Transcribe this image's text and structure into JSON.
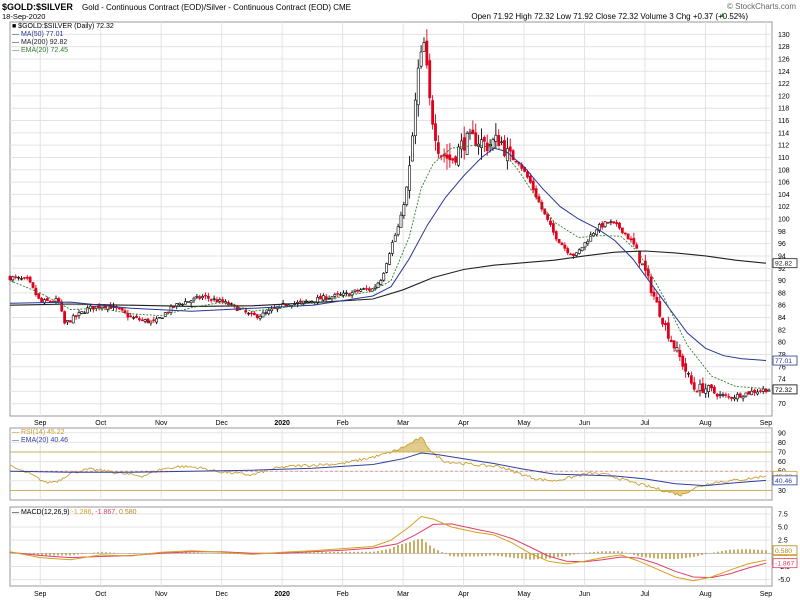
{
  "header": {
    "symbol": "$GOLD:$SILVER",
    "description": "Gold - Continuous Contract (EOD)/Silver - Continuous Contract (EOD)  CME",
    "date": "18-Sep-2020",
    "quote": "Open 71.92  High 72.32  Low 71.92  Close 72.32  Volume 3  Chg +0.37 (+0.52%)",
    "quote_arrow": "▲",
    "watermark": "© StockCharts.com"
  },
  "colors": {
    "up": "#000000",
    "down": "#e0001b",
    "ma50": "#283593",
    "ma200": "#222222",
    "ema20": "#2e7d32",
    "rsi": "#c8a030",
    "rsi_fill": "#c8a030",
    "rsi_ema": "#3040a0",
    "macd": "#d4a020",
    "signal": "#e0406a",
    "hist": "#b08820",
    "grid": "#e3e3e3",
    "frame": "#9a9a9a"
  },
  "price_panel": {
    "legend": [
      {
        "text": "$GOLD:$SILVER (Daily) 72.32",
        "color": "#000000"
      },
      {
        "text": "MA(50) 77.01",
        "color": "#283593"
      },
      {
        "text": "MA(200) 92.82",
        "color": "#222222"
      },
      {
        "text": "EMA(20) 72.45",
        "color": "#2e7d32"
      }
    ],
    "y_ticks": [
      "70",
      "72",
      "74",
      "76",
      "78",
      "80",
      "82",
      "84",
      "86",
      "88",
      "90",
      "92",
      "94",
      "96",
      "98",
      "100",
      "102",
      "104",
      "106",
      "108",
      "110",
      "112",
      "114",
      "116",
      "118",
      "120",
      "122",
      "124",
      "126",
      "128",
      "130"
    ],
    "value_tags": [
      {
        "text": "92.82",
        "value": 92.82,
        "color": "#222222"
      },
      {
        "text": "77.01",
        "value": 77.01,
        "color": "#283593"
      },
      {
        "text": "72.32",
        "value": 72.32,
        "color": "#000000"
      }
    ]
  },
  "rsi_panel": {
    "legend": [
      {
        "text": "RSI(14) 45.22",
        "color": "#c8a030"
      },
      {
        "text": "EMA(20) 40.46",
        "color": "#3040a0"
      }
    ],
    "y_ticks": [
      "30",
      "40",
      "50",
      "60",
      "70",
      "80",
      "90"
    ],
    "value_tags": [
      {
        "text": "45.22",
        "value": 45.22,
        "color": "#c8a030"
      },
      {
        "text": "40.46",
        "value": 40.46,
        "color": "#3040a0"
      }
    ]
  },
  "macd_panel": {
    "legend_label": "MACD(12,26,9)",
    "legend_values": [
      "-1.286",
      ", -1.867",
      ", 0.580"
    ],
    "y_ticks": [
      "-5.0",
      "-2.5",
      "0.0",
      "2.5",
      "5.0",
      "7.5"
    ],
    "value_tags": [
      {
        "text": "0.580",
        "value": 0.58,
        "color": "#b08820"
      },
      {
        "text": "-1.286",
        "value": -1.286,
        "color": "#d4a020"
      },
      {
        "text": "-1.867",
        "value": -1.867,
        "color": "#e0406a"
      }
    ]
  },
  "x_axis": {
    "labels": [
      "Sep",
      "Oct",
      "Nov",
      "Dec",
      "2020",
      "Feb",
      "Mar",
      "Apr",
      "May",
      "Jun",
      "Jul",
      "Aug",
      "Sep"
    ],
    "positions": [
      0.5,
      1.5,
      2.5,
      3.5,
      4.5,
      5.5,
      6.5,
      7.5,
      8.5,
      9.5,
      10.5,
      11.5,
      12.5
    ]
  },
  "chart_data": {
    "type": "candlestick",
    "title": "$GOLD:$SILVER (Daily)",
    "x_unit": "months since Aug 2019",
    "x_range": [
      0,
      12.6
    ],
    "ylim": [
      68,
      132
    ],
    "price_points": [
      [
        0.0,
        90.5
      ],
      [
        0.3,
        90.0
      ],
      [
        0.5,
        86.5
      ],
      [
        0.8,
        86.8
      ],
      [
        0.9,
        83.0
      ],
      [
        1.1,
        84.2
      ],
      [
        1.3,
        85.5
      ],
      [
        1.6,
        86.0
      ],
      [
        1.8,
        85.2
      ],
      [
        2.0,
        84.0
      ],
      [
        2.2,
        83.5
      ],
      [
        2.4,
        83.2
      ],
      [
        2.6,
        85.0
      ],
      [
        2.8,
        86.3
      ],
      [
        3.0,
        86.8
      ],
      [
        3.2,
        87.4
      ],
      [
        3.4,
        86.8
      ],
      [
        3.6,
        86.2
      ],
      [
        3.8,
        85.3
      ],
      [
        4.0,
        84.2
      ],
      [
        4.2,
        84.5
      ],
      [
        4.4,
        85.5
      ],
      [
        4.6,
        86.3
      ],
      [
        4.8,
        86.3
      ],
      [
        5.0,
        86.8
      ],
      [
        5.2,
        87.2
      ],
      [
        5.4,
        87.5
      ],
      [
        5.6,
        87.8
      ],
      [
        5.8,
        88.5
      ],
      [
        6.0,
        88.6
      ],
      [
        6.15,
        90.5
      ],
      [
        6.3,
        95.5
      ],
      [
        6.45,
        99.5
      ],
      [
        6.6,
        107.0
      ],
      [
        6.75,
        124.0
      ],
      [
        6.85,
        128.5
      ],
      [
        6.95,
        118.0
      ],
      [
        7.1,
        111.0
      ],
      [
        7.3,
        109.5
      ],
      [
        7.5,
        112.5
      ],
      [
        7.7,
        113.0
      ],
      [
        7.9,
        112.0
      ],
      [
        8.1,
        113.0
      ],
      [
        8.25,
        110.0
      ],
      [
        8.4,
        109.5
      ],
      [
        8.6,
        106.0
      ],
      [
        8.8,
        101.5
      ],
      [
        9.0,
        97.5
      ],
      [
        9.2,
        95.0
      ],
      [
        9.35,
        94.0
      ],
      [
        9.5,
        96.0
      ],
      [
        9.7,
        98.5
      ],
      [
        9.9,
        99.5
      ],
      [
        10.1,
        98.5
      ],
      [
        10.3,
        96.0
      ],
      [
        10.5,
        91.5
      ],
      [
        10.7,
        86.0
      ],
      [
        10.9,
        81.0
      ],
      [
        11.1,
        77.0
      ],
      [
        11.3,
        72.5
      ],
      [
        11.5,
        72.5
      ],
      [
        11.7,
        71.5
      ],
      [
        11.9,
        71.0
      ],
      [
        12.1,
        71.5
      ],
      [
        12.3,
        72.0
      ],
      [
        12.5,
        72.32
      ]
    ],
    "last_candle": {
      "open": 71.92,
      "high": 72.32,
      "low": 71.92,
      "close": 72.32,
      "volume": 3,
      "change": 0.37,
      "change_pct": 0.52
    },
    "series": [
      {
        "name": "MA(50)",
        "points": [
          [
            0.0,
            86.3
          ],
          [
            1.0,
            86.5
          ],
          [
            2.0,
            85.5
          ],
          [
            3.0,
            85.0
          ],
          [
            4.0,
            85.5
          ],
          [
            5.0,
            86.0
          ],
          [
            6.0,
            87.5
          ],
          [
            6.3,
            89.0
          ],
          [
            6.6,
            93.5
          ],
          [
            6.9,
            99.0
          ],
          [
            7.2,
            103.5
          ],
          [
            7.5,
            107.0
          ],
          [
            7.8,
            110.0
          ],
          [
            8.0,
            111.5
          ],
          [
            8.2,
            111.0
          ],
          [
            8.5,
            108.5
          ],
          [
            8.8,
            105.0
          ],
          [
            9.1,
            102.0
          ],
          [
            9.4,
            100.0
          ],
          [
            9.7,
            98.5
          ],
          [
            10.0,
            96.5
          ],
          [
            10.3,
            93.5
          ],
          [
            10.6,
            89.5
          ],
          [
            10.9,
            85.5
          ],
          [
            11.2,
            81.5
          ],
          [
            11.5,
            79.0
          ],
          [
            11.8,
            77.8
          ],
          [
            12.1,
            77.3
          ],
          [
            12.5,
            77.01
          ]
        ]
      },
      {
        "name": "MA(200)",
        "points": [
          [
            0.0,
            86.0
          ],
          [
            1.0,
            86.2
          ],
          [
            2.0,
            86.0
          ],
          [
            3.0,
            85.8
          ],
          [
            4.0,
            85.9
          ],
          [
            5.0,
            86.4
          ],
          [
            6.0,
            87.0
          ],
          [
            6.5,
            88.5
          ],
          [
            7.0,
            90.5
          ],
          [
            7.5,
            91.8
          ],
          [
            8.0,
            92.5
          ],
          [
            8.5,
            92.9
          ],
          [
            9.0,
            93.3
          ],
          [
            9.5,
            94.0
          ],
          [
            10.0,
            94.6
          ],
          [
            10.5,
            94.8
          ],
          [
            11.0,
            94.5
          ],
          [
            11.5,
            94.0
          ],
          [
            12.0,
            93.3
          ],
          [
            12.5,
            92.82
          ]
        ]
      },
      {
        "name": "EMA(20)",
        "points": [
          [
            0.0,
            90.0
          ],
          [
            0.5,
            88.0
          ],
          [
            1.0,
            85.3
          ],
          [
            1.5,
            85.5
          ],
          [
            2.0,
            84.6
          ],
          [
            2.5,
            84.3
          ],
          [
            3.0,
            85.6
          ],
          [
            3.5,
            86.5
          ],
          [
            4.0,
            85.0
          ],
          [
            4.5,
            85.6
          ],
          [
            5.0,
            86.4
          ],
          [
            5.5,
            87.4
          ],
          [
            6.0,
            88.3
          ],
          [
            6.3,
            90.0
          ],
          [
            6.6,
            97.0
          ],
          [
            6.8,
            105.0
          ],
          [
            7.0,
            109.0
          ],
          [
            7.3,
            111.5
          ],
          [
            7.7,
            112.0
          ],
          [
            8.1,
            111.5
          ],
          [
            8.4,
            108.0
          ],
          [
            8.7,
            103.5
          ],
          [
            9.0,
            99.5
          ],
          [
            9.4,
            97.0
          ],
          [
            9.8,
            97.3
          ],
          [
            10.1,
            97.2
          ],
          [
            10.4,
            94.5
          ],
          [
            10.8,
            87.5
          ],
          [
            11.2,
            79.5
          ],
          [
            11.6,
            74.5
          ],
          [
            12.0,
            72.8
          ],
          [
            12.5,
            72.45
          ]
        ]
      }
    ],
    "rsi": {
      "ylim": [
        20,
        95
      ],
      "overbought": 70,
      "oversold": 30,
      "rsi_points": [
        [
          0.0,
          55
        ],
        [
          0.3,
          48
        ],
        [
          0.6,
          38
        ],
        [
          0.8,
          40
        ],
        [
          1.0,
          48
        ],
        [
          1.3,
          52
        ],
        [
          1.6,
          50
        ],
        [
          1.9,
          47
        ],
        [
          2.2,
          45
        ],
        [
          2.5,
          52
        ],
        [
          2.8,
          55
        ],
        [
          3.1,
          54
        ],
        [
          3.4,
          50
        ],
        [
          3.7,
          48
        ],
        [
          4.0,
          46
        ],
        [
          4.3,
          52
        ],
        [
          4.6,
          55
        ],
        [
          4.9,
          56
        ],
        [
          5.2,
          57
        ],
        [
          5.5,
          58
        ],
        [
          5.8,
          62
        ],
        [
          6.1,
          66
        ],
        [
          6.4,
          72
        ],
        [
          6.6,
          78
        ],
        [
          6.8,
          85
        ],
        [
          7.0,
          68
        ],
        [
          7.2,
          60
        ],
        [
          7.5,
          58
        ],
        [
          7.8,
          56
        ],
        [
          8.1,
          55
        ],
        [
          8.4,
          48
        ],
        [
          8.7,
          42
        ],
        [
          9.0,
          40
        ],
        [
          9.3,
          44
        ],
        [
          9.6,
          48
        ],
        [
          9.9,
          46
        ],
        [
          10.2,
          40
        ],
        [
          10.5,
          35
        ],
        [
          10.8,
          30
        ],
        [
          11.1,
          25
        ],
        [
          11.3,
          32
        ],
        [
          11.6,
          38
        ],
        [
          11.9,
          40
        ],
        [
          12.2,
          42
        ],
        [
          12.5,
          45.22
        ]
      ],
      "ema_points": [
        [
          0.0,
          50
        ],
        [
          1.0,
          49
        ],
        [
          2.0,
          49
        ],
        [
          3.0,
          50
        ],
        [
          4.0,
          51
        ],
        [
          5.0,
          53
        ],
        [
          6.0,
          57
        ],
        [
          6.5,
          63
        ],
        [
          6.8,
          69
        ],
        [
          7.1,
          67
        ],
        [
          7.5,
          63
        ],
        [
          8.0,
          58
        ],
        [
          8.5,
          52
        ],
        [
          9.0,
          47
        ],
        [
          9.5,
          46
        ],
        [
          10.0,
          45
        ],
        [
          10.5,
          42
        ],
        [
          11.0,
          37
        ],
        [
          11.5,
          35
        ],
        [
          12.0,
          38
        ],
        [
          12.5,
          40.46
        ]
      ]
    },
    "macd": {
      "ylim": [
        -6.2,
        8.8
      ],
      "macd_points": [
        [
          0.0,
          0.3
        ],
        [
          0.5,
          -0.8
        ],
        [
          1.0,
          -1.2
        ],
        [
          1.5,
          -0.3
        ],
        [
          2.0,
          -0.5
        ],
        [
          2.5,
          0.2
        ],
        [
          3.0,
          0.5
        ],
        [
          3.5,
          0.2
        ],
        [
          4.0,
          -0.2
        ],
        [
          4.5,
          0.2
        ],
        [
          5.0,
          0.5
        ],
        [
          5.5,
          0.9
        ],
        [
          6.0,
          1.3
        ],
        [
          6.3,
          2.5
        ],
        [
          6.6,
          5.0
        ],
        [
          6.8,
          7.0
        ],
        [
          7.0,
          6.5
        ],
        [
          7.3,
          5.0
        ],
        [
          7.7,
          4.0
        ],
        [
          8.0,
          3.5
        ],
        [
          8.3,
          2.0
        ],
        [
          8.6,
          0.0
        ],
        [
          8.9,
          -1.5
        ],
        [
          9.2,
          -2.0
        ],
        [
          9.5,
          -1.5
        ],
        [
          9.8,
          -0.8
        ],
        [
          10.1,
          -0.3
        ],
        [
          10.4,
          -1.5
        ],
        [
          10.7,
          -3.0
        ],
        [
          11.0,
          -4.5
        ],
        [
          11.3,
          -5.2
        ],
        [
          11.6,
          -4.5
        ],
        [
          11.9,
          -3.2
        ],
        [
          12.2,
          -2.0
        ],
        [
          12.5,
          -1.286
        ]
      ],
      "signal_points": [
        [
          0.0,
          0.2
        ],
        [
          0.5,
          -0.4
        ],
        [
          1.0,
          -0.8
        ],
        [
          1.5,
          -0.6
        ],
        [
          2.0,
          -0.4
        ],
        [
          2.5,
          0.0
        ],
        [
          3.0,
          0.3
        ],
        [
          3.5,
          0.3
        ],
        [
          4.0,
          0.0
        ],
        [
          4.5,
          0.0
        ],
        [
          5.0,
          0.3
        ],
        [
          5.5,
          0.6
        ],
        [
          6.0,
          1.0
        ],
        [
          6.4,
          1.8
        ],
        [
          6.7,
          3.5
        ],
        [
          7.0,
          5.5
        ],
        [
          7.3,
          5.6
        ],
        [
          7.7,
          4.6
        ],
        [
          8.0,
          3.9
        ],
        [
          8.3,
          2.8
        ],
        [
          8.6,
          1.2
        ],
        [
          8.9,
          -0.5
        ],
        [
          9.2,
          -1.5
        ],
        [
          9.5,
          -1.6
        ],
        [
          9.8,
          -1.2
        ],
        [
          10.1,
          -0.7
        ],
        [
          10.4,
          -0.9
        ],
        [
          10.7,
          -2.0
        ],
        [
          11.0,
          -3.4
        ],
        [
          11.3,
          -4.5
        ],
        [
          11.6,
          -4.6
        ],
        [
          11.9,
          -3.9
        ],
        [
          12.2,
          -2.8
        ],
        [
          12.5,
          -1.867
        ]
      ]
    }
  }
}
